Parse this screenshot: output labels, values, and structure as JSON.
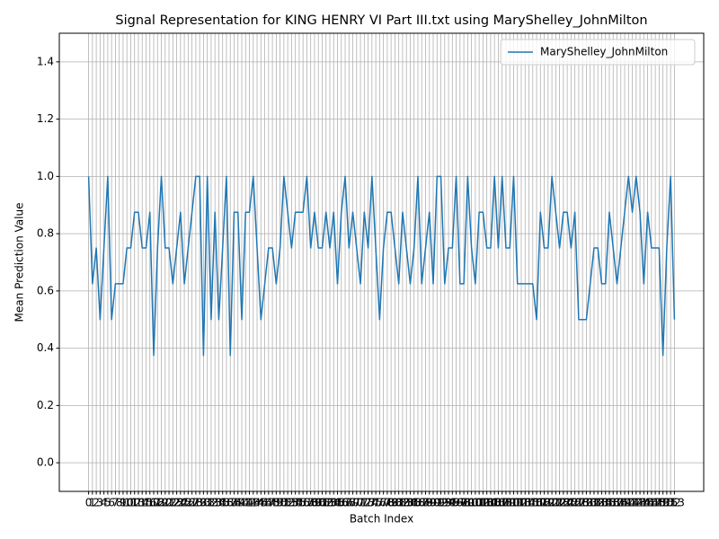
{
  "chart_data": {
    "type": "line",
    "title": "Signal Representation for KING HENRY VI Part III.txt using MaryShelley_JohnMilton",
    "xlabel": "Batch Index",
    "ylabel": "Mean Prediction Value",
    "x": [
      0,
      1,
      2,
      3,
      4,
      5,
      6,
      7,
      8,
      9,
      10,
      11,
      12,
      13,
      14,
      15,
      16,
      17,
      18,
      19,
      20,
      21,
      22,
      23,
      24,
      25,
      26,
      27,
      28,
      29,
      30,
      31,
      32,
      33,
      34,
      35,
      36,
      37,
      38,
      39,
      40,
      41,
      42,
      43,
      44,
      45,
      46,
      47,
      48,
      49,
      50,
      51,
      52,
      53,
      54,
      55,
      56,
      57,
      58,
      59,
      60,
      61,
      62,
      63,
      64,
      65,
      66,
      67,
      68,
      69,
      70,
      71,
      72,
      73,
      74,
      75,
      76,
      77,
      78,
      79,
      80,
      81,
      82,
      83,
      84,
      85,
      86,
      87,
      88,
      89,
      90,
      91,
      92,
      93,
      94,
      95,
      96,
      97,
      98,
      99,
      100,
      101,
      102,
      103,
      104,
      105,
      106,
      107,
      108,
      109,
      110,
      111,
      112,
      113,
      114,
      115,
      116,
      117,
      118,
      119,
      120,
      121,
      122,
      123,
      124,
      125,
      126,
      127,
      128,
      129,
      130,
      131,
      132,
      133,
      134,
      135,
      136,
      137,
      138,
      139,
      140,
      141,
      142,
      143,
      144,
      145,
      146,
      147,
      148,
      149,
      150,
      151,
      152,
      153
    ],
    "series": [
      {
        "name": "MaryShelley_JohnMilton",
        "color": "#1f77b4",
        "values": [
          1.0,
          0.625,
          0.75,
          0.5,
          0.75,
          1.0,
          0.5,
          0.625,
          0.625,
          0.625,
          0.75,
          0.75,
          0.875,
          0.875,
          0.75,
          0.75,
          0.875,
          0.375,
          0.75,
          1.0,
          0.75,
          0.75,
          0.625,
          0.75,
          0.875,
          0.625,
          0.75,
          0.875,
          1.0,
          1.0,
          0.375,
          1.0,
          0.5,
          0.875,
          0.5,
          0.75,
          1.0,
          0.375,
          0.875,
          0.875,
          0.5,
          0.875,
          0.875,
          1.0,
          0.75,
          0.5,
          0.625,
          0.75,
          0.75,
          0.625,
          0.75,
          1.0,
          0.875,
          0.75,
          0.875,
          0.875,
          0.875,
          1.0,
          0.75,
          0.875,
          0.75,
          0.75,
          0.875,
          0.75,
          0.875,
          0.625,
          0.875,
          1.0,
          0.75,
          0.875,
          0.75,
          0.625,
          0.875,
          0.75,
          1.0,
          0.75,
          0.5,
          0.75,
          0.875,
          0.875,
          0.75,
          0.625,
          0.875,
          0.75,
          0.625,
          0.75,
          1.0,
          0.625,
          0.75,
          0.875,
          0.625,
          1.0,
          1.0,
          0.625,
          0.75,
          0.75,
          1.0,
          0.625,
          0.625,
          1.0,
          0.75,
          0.625,
          0.875,
          0.875,
          0.75,
          0.75,
          1.0,
          0.75,
          1.0,
          0.75,
          0.75,
          1.0,
          0.625,
          0.625,
          0.625,
          0.625,
          0.625,
          0.5,
          0.875,
          0.75,
          0.75,
          1.0,
          0.875,
          0.75,
          0.875,
          0.875,
          0.75,
          0.875,
          0.5,
          0.5,
          0.5,
          0.625,
          0.75,
          0.75,
          0.625,
          0.625,
          0.875,
          0.75,
          0.625,
          0.75,
          0.875,
          1.0,
          0.875,
          1.0,
          0.875,
          0.625,
          0.875,
          0.75,
          0.75,
          0.75,
          0.375,
          0.75,
          1.0,
          0.5
        ]
      }
    ],
    "xlim": [
      -7.65,
      160.65
    ],
    "xticks": [
      0,
      1,
      2,
      3,
      4,
      5,
      6,
      7,
      8,
      9,
      10,
      11,
      12,
      13,
      14,
      15,
      16,
      17,
      18,
      19,
      20,
      21,
      22,
      23,
      24,
      25,
      26,
      27,
      28,
      29,
      30,
      31,
      32,
      33,
      34,
      35,
      36,
      37,
      38,
      39,
      40,
      41,
      42,
      43,
      44,
      45,
      46,
      47,
      48,
      49,
      50,
      51,
      52,
      53,
      54,
      55,
      56,
      57,
      58,
      59,
      60,
      61,
      62,
      63,
      64,
      65,
      66,
      67,
      68,
      69,
      70,
      71,
      72,
      73,
      74,
      75,
      76,
      77,
      78,
      79,
      80,
      81,
      82,
      83,
      84,
      85,
      86,
      87,
      88,
      89,
      90,
      91,
      92,
      93,
      94,
      95,
      96,
      97,
      98,
      99,
      100,
      101,
      102,
      103,
      104,
      105,
      106,
      107,
      108,
      109,
      110,
      111,
      112,
      113,
      114,
      115,
      116,
      117,
      118,
      119,
      120,
      121,
      122,
      123,
      124,
      125,
      126,
      127,
      128,
      129,
      130,
      131,
      132,
      133,
      134,
      135,
      136,
      137,
      138,
      139,
      140,
      141,
      142,
      143,
      144,
      145,
      146,
      147,
      148,
      149,
      150,
      151,
      152,
      153
    ],
    "ylim": [
      -0.1,
      1.5
    ],
    "yticks": [
      {
        "value": 0,
        "label": "0.0"
      },
      0.2,
      0.4,
      0.6,
      0.8,
      {
        "value": 1,
        "label": "1.0"
      },
      1.2,
      1.4
    ],
    "grid": true,
    "legend": "upper right"
  }
}
